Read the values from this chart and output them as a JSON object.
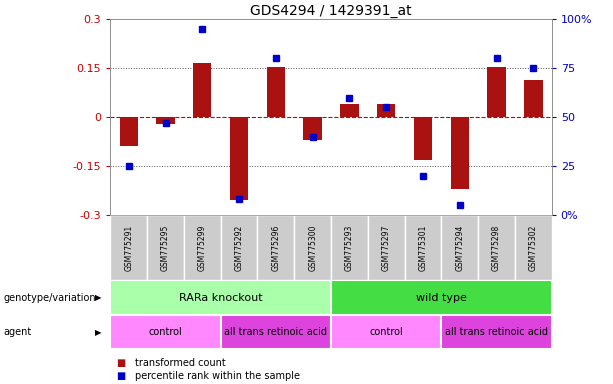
{
  "title": "GDS4294 / 1429391_at",
  "samples": [
    "GSM775291",
    "GSM775295",
    "GSM775299",
    "GSM775292",
    "GSM775296",
    "GSM775300",
    "GSM775293",
    "GSM775297",
    "GSM775301",
    "GSM775294",
    "GSM775298",
    "GSM775302"
  ],
  "bar_values": [
    -0.09,
    -0.02,
    0.165,
    -0.255,
    0.155,
    -0.07,
    0.04,
    0.04,
    -0.13,
    -0.22,
    0.155,
    0.115
  ],
  "dot_values": [
    25,
    47,
    95,
    8,
    80,
    40,
    60,
    55,
    20,
    5,
    80,
    75
  ],
  "ylim_left": [
    -0.3,
    0.3
  ],
  "ylim_right": [
    0,
    100
  ],
  "bar_color": "#aa1111",
  "dot_color": "#0000cc",
  "hline_color": "#cc0000",
  "dotted_color": "#555555",
  "bg_color": "#ffffff",
  "sample_box_color": "#cccccc",
  "genotype": [
    {
      "label": "RARa knockout",
      "span": [
        0,
        6
      ],
      "color": "#aaffaa"
    },
    {
      "label": "wild type",
      "span": [
        6,
        12
      ],
      "color": "#44dd44"
    }
  ],
  "agent": [
    {
      "label": "control",
      "span": [
        0,
        3
      ],
      "color": "#ff88ff"
    },
    {
      "label": "all trans retinoic acid",
      "span": [
        3,
        6
      ],
      "color": "#dd44dd"
    },
    {
      "label": "control",
      "span": [
        6,
        9
      ],
      "color": "#ff88ff"
    },
    {
      "label": "all trans retinoic acid",
      "span": [
        9,
        12
      ],
      "color": "#dd44dd"
    }
  ],
  "legend_items": [
    {
      "label": "transformed count",
      "color": "#aa1111"
    },
    {
      "label": "percentile rank within the sample",
      "color": "#0000cc"
    }
  ],
  "yticks_left": [
    -0.3,
    -0.15,
    0,
    0.15,
    0.3
  ],
  "ytick_left_labels": [
    "-0.3",
    "-0.15",
    "0",
    "0.15",
    "0.3"
  ],
  "yticks_right": [
    0,
    25,
    50,
    75,
    100
  ],
  "right_tick_labels": [
    "0%",
    "25",
    "50",
    "75",
    "100%"
  ]
}
